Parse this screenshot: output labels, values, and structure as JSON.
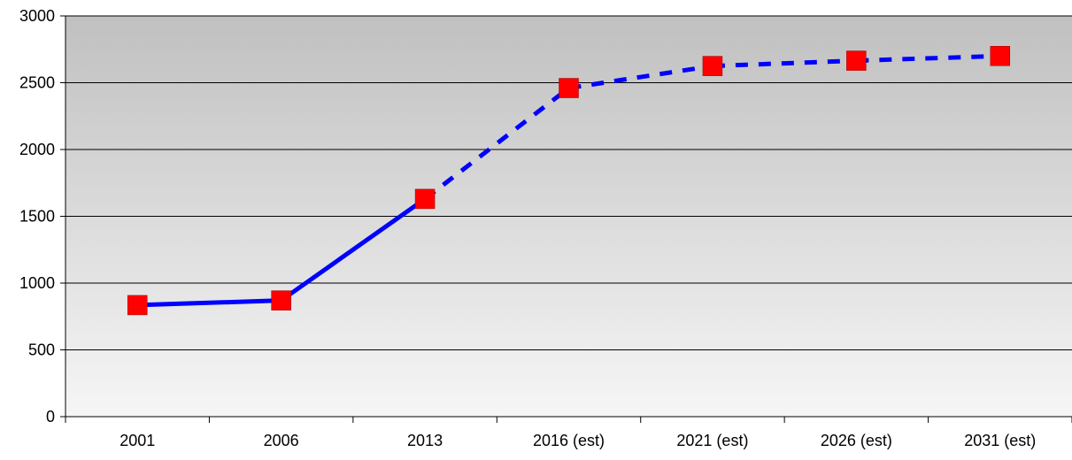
{
  "chart_data": {
    "type": "line",
    "title": "",
    "xlabel": "",
    "ylabel": "",
    "categories": [
      "2001",
      "2006",
      "2013",
      "2016 (est)",
      "2021 (est)",
      "2026 (est)",
      "2031 (est)"
    ],
    "series": [
      {
        "values": [
          835,
          870,
          1630,
          2460,
          2625,
          2665,
          2700
        ],
        "line_style": [
          "solid",
          "solid",
          "dashed",
          "dashed",
          "dashed",
          "dashed"
        ]
      }
    ],
    "ylim": [
      0,
      3000
    ],
    "yticks": [
      0,
      500,
      1000,
      1500,
      2000,
      2500,
      3000
    ],
    "grid": true,
    "legend": "none",
    "colors": {
      "line": "#0000ff",
      "marker": "#ff0000",
      "plot_bg_top": "#c0c0c0",
      "plot_bg_bottom": "#f6f6f6"
    }
  }
}
